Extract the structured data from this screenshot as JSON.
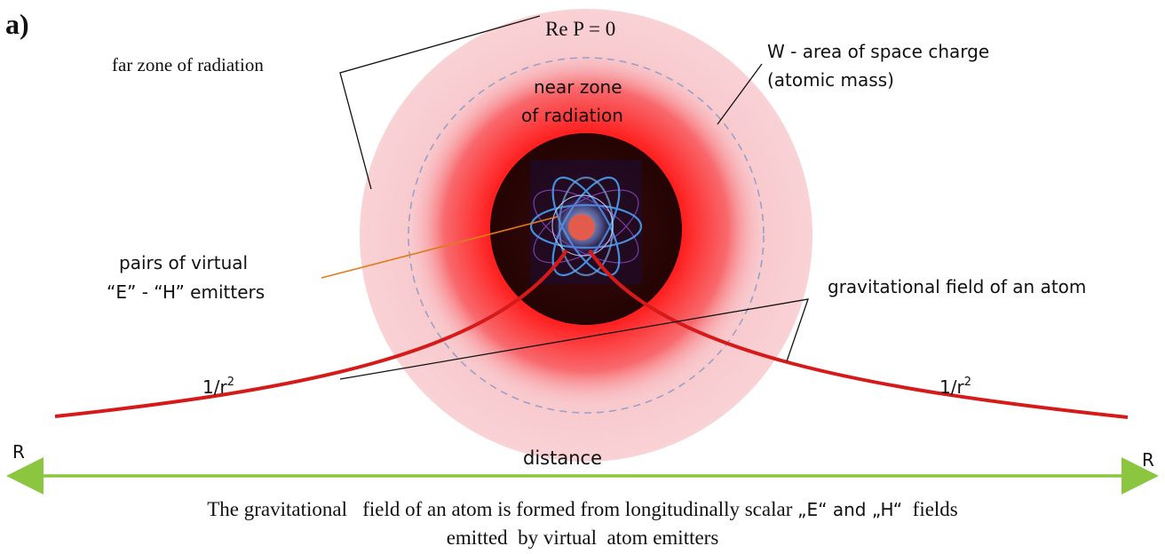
{
  "panel_label": "a)",
  "labels": {
    "re_p": "Re P = 0",
    "far_zone": "far zone of radiation",
    "w_area_line1": "W - area of space charge",
    "w_area_line2": "(atomic mass)",
    "near_zone_line1": "near zone",
    "near_zone_line2": "of radiation",
    "pairs_line1": "pairs of virtual",
    "pairs_line2": "“E” - “H” emitters",
    "grav_field": "gravitational field of an atom",
    "inv_sq_left": "1/r",
    "inv_sq_right": "1/r",
    "inv_sq_exp": "2",
    "r_left": "R",
    "r_right": "R",
    "distance": "distance"
  },
  "caption": {
    "part1": "The gravitational   field of an atom is formed from longitudinally scalar ",
    "e_quote": "„E“",
    "and": " and ",
    "h_quote": "„H“",
    "part2": "  fields",
    "line2": "emitted  by virtual  atom emitters"
  },
  "colors": {
    "far_zone": "#f6c9cd",
    "near_zone": "#ff1a1a",
    "core": "#2a0606",
    "curve": "#d61a1a",
    "axis": "#8cc641",
    "pointer_pairs": "#e07b1a",
    "dashed_circle": "#9aa0c8",
    "orbit": "#4aa8ff",
    "nucleus": "#e25b4b"
  },
  "icons": {
    "atom": "atom-icon",
    "axis_arrows": "double-arrow-icon"
  }
}
